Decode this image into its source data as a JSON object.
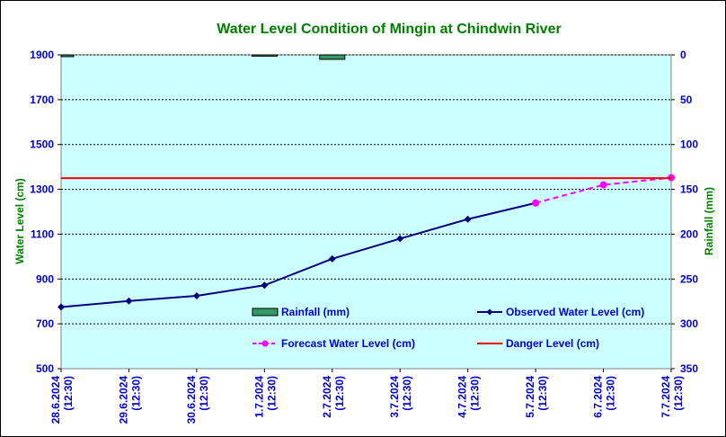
{
  "chart_data": {
    "type": "line",
    "title": "Water Level Condition of Mingin at Chindwin River",
    "ylabel": "Water Level (cm)",
    "y2label": "Rainfall (mm)",
    "ylim": [
      500,
      1900
    ],
    "y2lim": [
      0,
      350
    ],
    "y2_reversed": true,
    "yticks": [
      "500",
      "700",
      "900",
      "1100",
      "1300",
      "1500",
      "1700",
      "1900"
    ],
    "y2ticks": [
      "0",
      "50",
      "100",
      "150",
      "200",
      "250",
      "300",
      "350"
    ],
    "categories": [
      [
        "28.6.2024",
        "(12:30)"
      ],
      [
        "29.6.2024",
        "(12:30)"
      ],
      [
        "30.6.2024",
        "(12:30)"
      ],
      [
        "1.7.2024",
        "(12:30)"
      ],
      [
        "2.7.2024",
        "(12:30)"
      ],
      [
        "3.7.2024",
        "(12:30)"
      ],
      [
        "4.7.2024",
        "(12:30)"
      ],
      [
        "5.7.2024",
        "(12:30)"
      ],
      [
        "6.7.2024",
        "(12:30)"
      ],
      [
        "7.7.2024",
        "(12:30)"
      ]
    ],
    "series": [
      {
        "name": "Rainfall (mm)",
        "kind": "bar",
        "axis": "right",
        "color": "#339966",
        "values": [
          2,
          null,
          null,
          0.5,
          5,
          null,
          null,
          null,
          null,
          null
        ]
      },
      {
        "name": "Observed Water Level (cm)",
        "kind": "line",
        "axis": "left",
        "color": "#000080",
        "marker": "diamond",
        "values": [
          775,
          802,
          825,
          872,
          990,
          1080,
          1167,
          1239,
          null,
          null
        ]
      },
      {
        "name": "Forecast Water Level (cm)",
        "kind": "line",
        "axis": "left",
        "color": "#ff00ff",
        "dashed": true,
        "marker": "circle",
        "values": [
          null,
          null,
          null,
          null,
          null,
          null,
          null,
          1239,
          1320,
          1352
        ]
      },
      {
        "name": "Danger Level (cm)",
        "kind": "line",
        "axis": "left",
        "color": "#ff0000",
        "constant": 1350
      }
    ],
    "plot_background": "#ccffff",
    "title_color": "#008000",
    "tick_color": "#0000cc",
    "gridlines": "dotted-horizontal",
    "legend_position": "inside-bottom"
  }
}
